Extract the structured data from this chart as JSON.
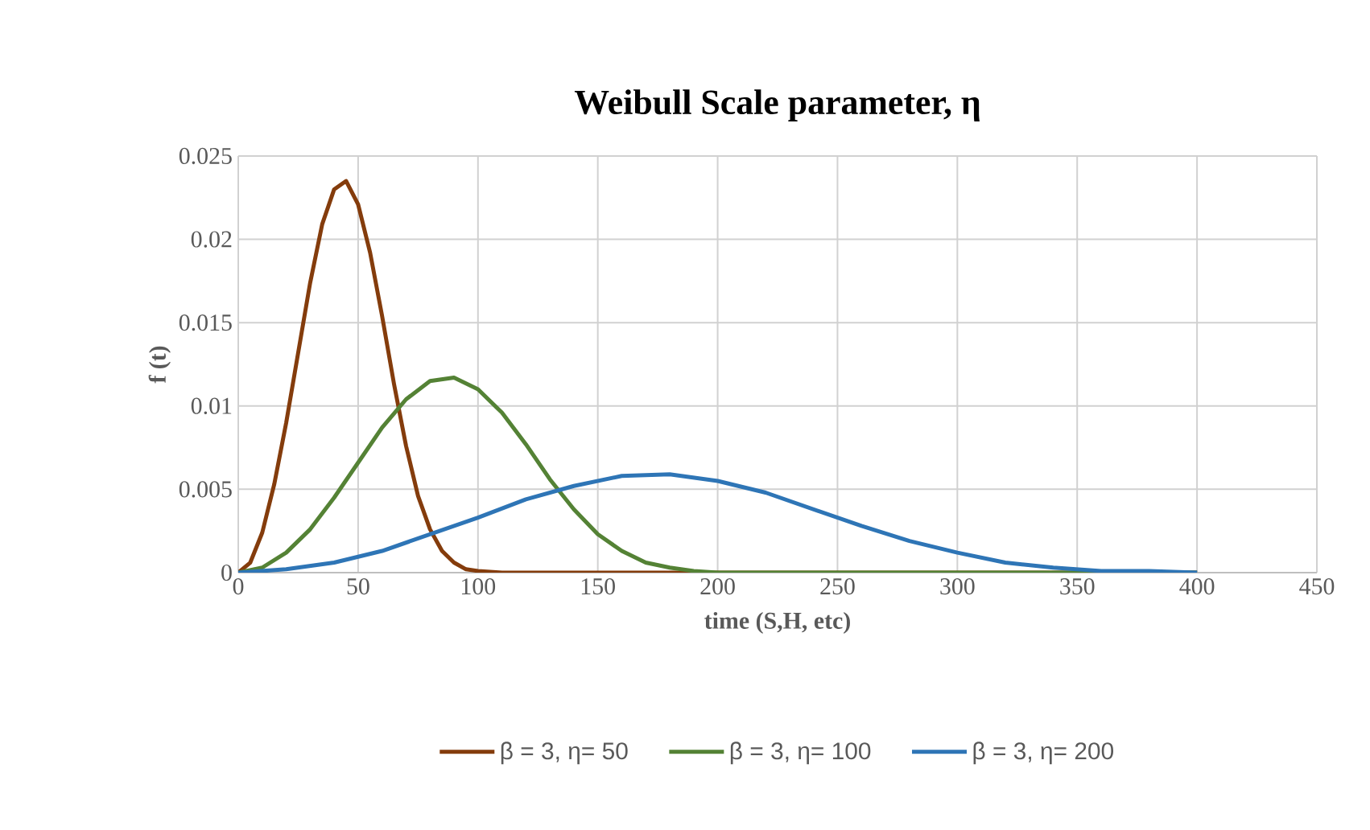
{
  "chart_data": {
    "type": "line",
    "title": "Weibull  Scale parameter, η",
    "xlabel": "time (S,H, etc)",
    "ylabel": "f (t)",
    "xlim": [
      0,
      450
    ],
    "xticks": [
      0,
      50,
      100,
      150,
      200,
      250,
      300,
      350,
      400,
      450
    ],
    "ylim": [
      0,
      0.025
    ],
    "yticks": [
      0,
      0.005,
      0.01,
      0.015,
      0.02,
      0.025
    ],
    "grid": true,
    "legend": "bottom",
    "marker": "none",
    "line_style": "solid",
    "series": [
      {
        "name": "β = 3, η= 50",
        "color": "#843c0c",
        "x": [
          0,
          5,
          10,
          15,
          20,
          25,
          30,
          35,
          40,
          45,
          50,
          55,
          60,
          65,
          70,
          75,
          80,
          85,
          90,
          95,
          100,
          110,
          150,
          200,
          300,
          400
        ],
        "values": [
          0,
          0.0006,
          0.0024,
          0.0053,
          0.009,
          0.0132,
          0.0174,
          0.0209,
          0.023,
          0.0235,
          0.0221,
          0.0192,
          0.0154,
          0.0113,
          0.0076,
          0.0046,
          0.0026,
          0.0013,
          0.0006,
          0.0002,
          0.0001,
          0,
          0,
          0,
          0,
          0
        ]
      },
      {
        "name": "β = 3, η= 100",
        "color": "#548235",
        "x": [
          0,
          10,
          20,
          30,
          40,
          50,
          60,
          70,
          80,
          90,
          100,
          110,
          120,
          130,
          140,
          150,
          160,
          170,
          180,
          190,
          200,
          250,
          300,
          400
        ],
        "values": [
          0,
          0.0003,
          0.0012,
          0.0026,
          0.0045,
          0.0066,
          0.0087,
          0.0104,
          0.0115,
          0.0117,
          0.011,
          0.0096,
          0.0077,
          0.0056,
          0.0038,
          0.0023,
          0.0013,
          0.0006,
          0.0003,
          0.0001,
          0,
          0,
          0,
          0
        ]
      },
      {
        "name": "β = 3, η= 200",
        "color": "#2e75b6",
        "x": [
          0,
          20,
          40,
          60,
          80,
          100,
          120,
          140,
          160,
          180,
          200,
          220,
          240,
          260,
          280,
          300,
          320,
          340,
          360,
          380,
          400
        ],
        "values": [
          0,
          0.0002,
          0.0006,
          0.0013,
          0.0023,
          0.0033,
          0.0044,
          0.0052,
          0.0058,
          0.0059,
          0.0055,
          0.0048,
          0.0038,
          0.0028,
          0.0019,
          0.0012,
          0.0006,
          0.0003,
          0.0001,
          0.0001,
          0
        ]
      }
    ]
  }
}
